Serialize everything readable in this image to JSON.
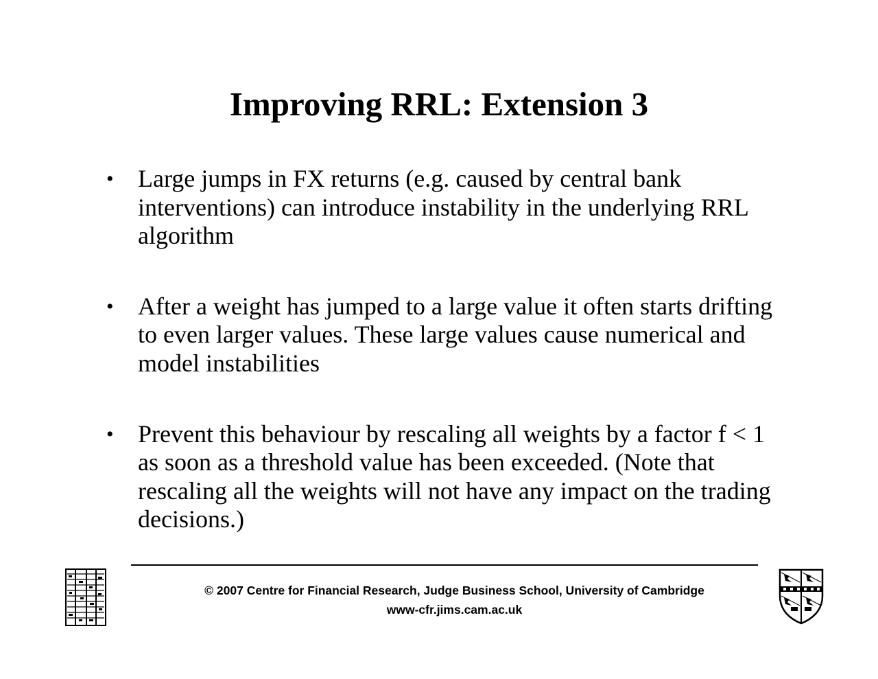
{
  "slide": {
    "title": "Improving RRL: Extension 3",
    "bullets": [
      "Large jumps in FX returns (e.g. caused by central bank interventions) can introduce instability in the underlying RRL algorithm",
      "After a weight has jumped to a large value it often starts drifting to even larger values. These large values cause numerical and model instabilities",
      "Prevent this behaviour by rescaling all weights by a factor f < 1 as soon as a threshold value has been exceeded. (Note that rescaling all the weights will not have any impact on the trading decisions.)"
    ],
    "bullet_symbol": "•"
  },
  "footer": {
    "copyright": "© 2007 Centre for Financial Research,  Judge Business School,  University of Cambridge",
    "url": "www-cfr.jims.cam.ac.uk"
  },
  "logos": {
    "left": "jbs-logo-icon",
    "right": "cambridge-crest-icon"
  }
}
